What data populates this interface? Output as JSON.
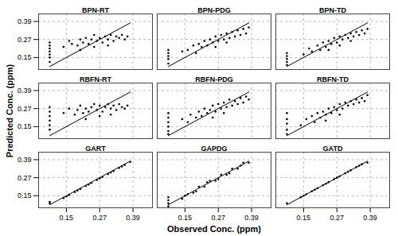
{
  "chart_data": {
    "type": "scatter",
    "x_label": "Observed Conc. (ppm)",
    "y_label": "Predicted Conc. (ppm)",
    "xlim": [
      0.05,
      0.46
    ],
    "ylim": [
      0.07,
      0.44
    ],
    "xticks": [
      0.15,
      0.27,
      0.39
    ],
    "yticks": [
      0.15,
      0.27,
      0.39
    ],
    "grid": true,
    "color": "#000000",
    "marker": "circle",
    "panels": [
      {
        "title": "BPN-RT",
        "x": [
          0.09,
          0.09,
          0.09,
          0.09,
          0.09,
          0.09,
          0.09,
          0.14,
          0.16,
          0.17,
          0.19,
          0.2,
          0.21,
          0.22,
          0.23,
          0.24,
          0.25,
          0.26,
          0.27,
          0.28,
          0.29,
          0.3,
          0.31,
          0.32,
          0.33,
          0.34,
          0.35,
          0.36,
          0.37,
          0.25,
          0.3,
          0.2
        ],
        "y": [
          0.12,
          0.15,
          0.17,
          0.19,
          0.21,
          0.23,
          0.25,
          0.22,
          0.26,
          0.24,
          0.23,
          0.27,
          0.25,
          0.28,
          0.24,
          0.27,
          0.3,
          0.26,
          0.28,
          0.25,
          0.29,
          0.27,
          0.3,
          0.26,
          0.29,
          0.28,
          0.3,
          0.27,
          0.29,
          0.22,
          0.23,
          0.2
        ],
        "line": {
          "x": [
            0.09,
            0.38
          ],
          "y": [
            0.09,
            0.38
          ]
        }
      },
      {
        "title": "BPN-PDG",
        "x": [
          0.09,
          0.09,
          0.09,
          0.09,
          0.09,
          0.14,
          0.16,
          0.18,
          0.19,
          0.2,
          0.21,
          0.22,
          0.23,
          0.24,
          0.25,
          0.26,
          0.27,
          0.28,
          0.29,
          0.3,
          0.31,
          0.32,
          0.33,
          0.34,
          0.35,
          0.36,
          0.37,
          0.38,
          0.26,
          0.3
        ],
        "y": [
          0.11,
          0.14,
          0.16,
          0.18,
          0.2,
          0.19,
          0.2,
          0.23,
          0.18,
          0.24,
          0.22,
          0.26,
          0.23,
          0.27,
          0.25,
          0.29,
          0.26,
          0.3,
          0.27,
          0.31,
          0.28,
          0.32,
          0.29,
          0.33,
          0.3,
          0.34,
          0.31,
          0.35,
          0.22,
          0.25
        ],
        "line": {
          "x": [
            0.09,
            0.38
          ],
          "y": [
            0.09,
            0.38
          ]
        }
      },
      {
        "title": "BPN-TD",
        "x": [
          0.09,
          0.09,
          0.09,
          0.09,
          0.09,
          0.15,
          0.17,
          0.18,
          0.2,
          0.21,
          0.22,
          0.23,
          0.24,
          0.25,
          0.26,
          0.27,
          0.28,
          0.29,
          0.3,
          0.31,
          0.32,
          0.33,
          0.34,
          0.35,
          0.36,
          0.37,
          0.38,
          0.24,
          0.28,
          0.32
        ],
        "y": [
          0.1,
          0.12,
          0.14,
          0.16,
          0.18,
          0.17,
          0.21,
          0.19,
          0.23,
          0.2,
          0.25,
          0.22,
          0.26,
          0.24,
          0.28,
          0.25,
          0.29,
          0.27,
          0.3,
          0.28,
          0.31,
          0.29,
          0.32,
          0.3,
          0.33,
          0.31,
          0.34,
          0.2,
          0.23,
          0.26
        ],
        "line": {
          "x": [
            0.09,
            0.38
          ],
          "y": [
            0.09,
            0.38
          ]
        }
      },
      {
        "title": "RBFN-RT",
        "x": [
          0.09,
          0.09,
          0.09,
          0.09,
          0.09,
          0.09,
          0.14,
          0.16,
          0.18,
          0.19,
          0.2,
          0.21,
          0.22,
          0.23,
          0.24,
          0.25,
          0.26,
          0.27,
          0.28,
          0.29,
          0.3,
          0.31,
          0.32,
          0.33,
          0.34,
          0.35,
          0.36,
          0.37,
          0.22,
          0.27,
          0.31
        ],
        "y": [
          0.13,
          0.16,
          0.19,
          0.22,
          0.25,
          0.28,
          0.24,
          0.27,
          0.23,
          0.26,
          0.29,
          0.24,
          0.27,
          0.25,
          0.28,
          0.3,
          0.26,
          0.29,
          0.25,
          0.28,
          0.3,
          0.27,
          0.29,
          0.26,
          0.3,
          0.28,
          0.27,
          0.29,
          0.2,
          0.22,
          0.23
        ],
        "line": {
          "x": [
            0.09,
            0.38
          ],
          "y": [
            0.09,
            0.38
          ]
        }
      },
      {
        "title": "RBFN-PDG",
        "x": [
          0.09,
          0.09,
          0.09,
          0.09,
          0.09,
          0.09,
          0.14,
          0.16,
          0.17,
          0.19,
          0.2,
          0.21,
          0.22,
          0.23,
          0.24,
          0.25,
          0.26,
          0.27,
          0.28,
          0.29,
          0.3,
          0.31,
          0.32,
          0.33,
          0.34,
          0.35,
          0.36,
          0.37,
          0.38,
          0.25,
          0.29
        ],
        "y": [
          0.1,
          0.12,
          0.15,
          0.18,
          0.21,
          0.24,
          0.2,
          0.18,
          0.23,
          0.21,
          0.25,
          0.22,
          0.27,
          0.24,
          0.26,
          0.29,
          0.25,
          0.3,
          0.27,
          0.31,
          0.28,
          0.33,
          0.29,
          0.32,
          0.3,
          0.34,
          0.31,
          0.35,
          0.33,
          0.21,
          0.24
        ],
        "line": {
          "x": [
            0.09,
            0.38
          ],
          "y": [
            0.09,
            0.38
          ]
        }
      },
      {
        "title": "RBFN-TD",
        "x": [
          0.09,
          0.09,
          0.09,
          0.09,
          0.09,
          0.14,
          0.16,
          0.18,
          0.19,
          0.2,
          0.21,
          0.22,
          0.23,
          0.24,
          0.25,
          0.26,
          0.27,
          0.28,
          0.29,
          0.3,
          0.31,
          0.32,
          0.33,
          0.34,
          0.35,
          0.36,
          0.37,
          0.38,
          0.23,
          0.28
        ],
        "y": [
          0.1,
          0.13,
          0.17,
          0.2,
          0.24,
          0.16,
          0.2,
          0.22,
          0.18,
          0.24,
          0.21,
          0.25,
          0.23,
          0.27,
          0.24,
          0.28,
          0.26,
          0.3,
          0.27,
          0.31,
          0.29,
          0.32,
          0.3,
          0.33,
          0.31,
          0.34,
          0.32,
          0.36,
          0.19,
          0.23
        ],
        "line": {
          "x": [
            0.09,
            0.38
          ],
          "y": [
            0.09,
            0.38
          ]
        }
      },
      {
        "title": "GART",
        "x": [
          0.09,
          0.09,
          0.14,
          0.16,
          0.18,
          0.2,
          0.22,
          0.24,
          0.26,
          0.28,
          0.3,
          0.32,
          0.34,
          0.36,
          0.38,
          0.15,
          0.19,
          0.23,
          0.27,
          0.31,
          0.35
        ],
        "y": [
          0.1,
          0.11,
          0.135,
          0.155,
          0.175,
          0.195,
          0.215,
          0.235,
          0.255,
          0.275,
          0.295,
          0.315,
          0.335,
          0.355,
          0.375,
          0.145,
          0.185,
          0.225,
          0.265,
          0.305,
          0.345
        ],
        "line": {
          "x": [
            0.09,
            0.38
          ],
          "y": [
            0.09,
            0.38
          ]
        }
      },
      {
        "title": "GAPDG",
        "x": [
          0.09,
          0.09,
          0.09,
          0.09,
          0.14,
          0.16,
          0.18,
          0.2,
          0.22,
          0.24,
          0.26,
          0.28,
          0.3,
          0.32,
          0.34,
          0.36,
          0.38,
          0.15,
          0.19,
          0.23,
          0.27,
          0.31,
          0.35
        ],
        "y": [
          0.08,
          0.1,
          0.12,
          0.14,
          0.13,
          0.16,
          0.17,
          0.21,
          0.21,
          0.25,
          0.25,
          0.29,
          0.29,
          0.33,
          0.33,
          0.37,
          0.37,
          0.15,
          0.18,
          0.24,
          0.26,
          0.3,
          0.35
        ],
        "line": {
          "x": [
            0.09,
            0.38
          ],
          "y": [
            0.09,
            0.38
          ]
        }
      },
      {
        "title": "GATD",
        "x": [
          0.09,
          0.14,
          0.16,
          0.18,
          0.2,
          0.22,
          0.24,
          0.26,
          0.28,
          0.3,
          0.32,
          0.34,
          0.36,
          0.38,
          0.15,
          0.19,
          0.23,
          0.27,
          0.31,
          0.35
        ],
        "y": [
          0.1,
          0.14,
          0.16,
          0.18,
          0.2,
          0.22,
          0.24,
          0.26,
          0.28,
          0.3,
          0.32,
          0.34,
          0.36,
          0.37,
          0.15,
          0.19,
          0.23,
          0.27,
          0.31,
          0.35
        ],
        "line": {
          "x": [
            0.09,
            0.38
          ],
          "y": [
            0.09,
            0.38
          ]
        }
      }
    ]
  }
}
